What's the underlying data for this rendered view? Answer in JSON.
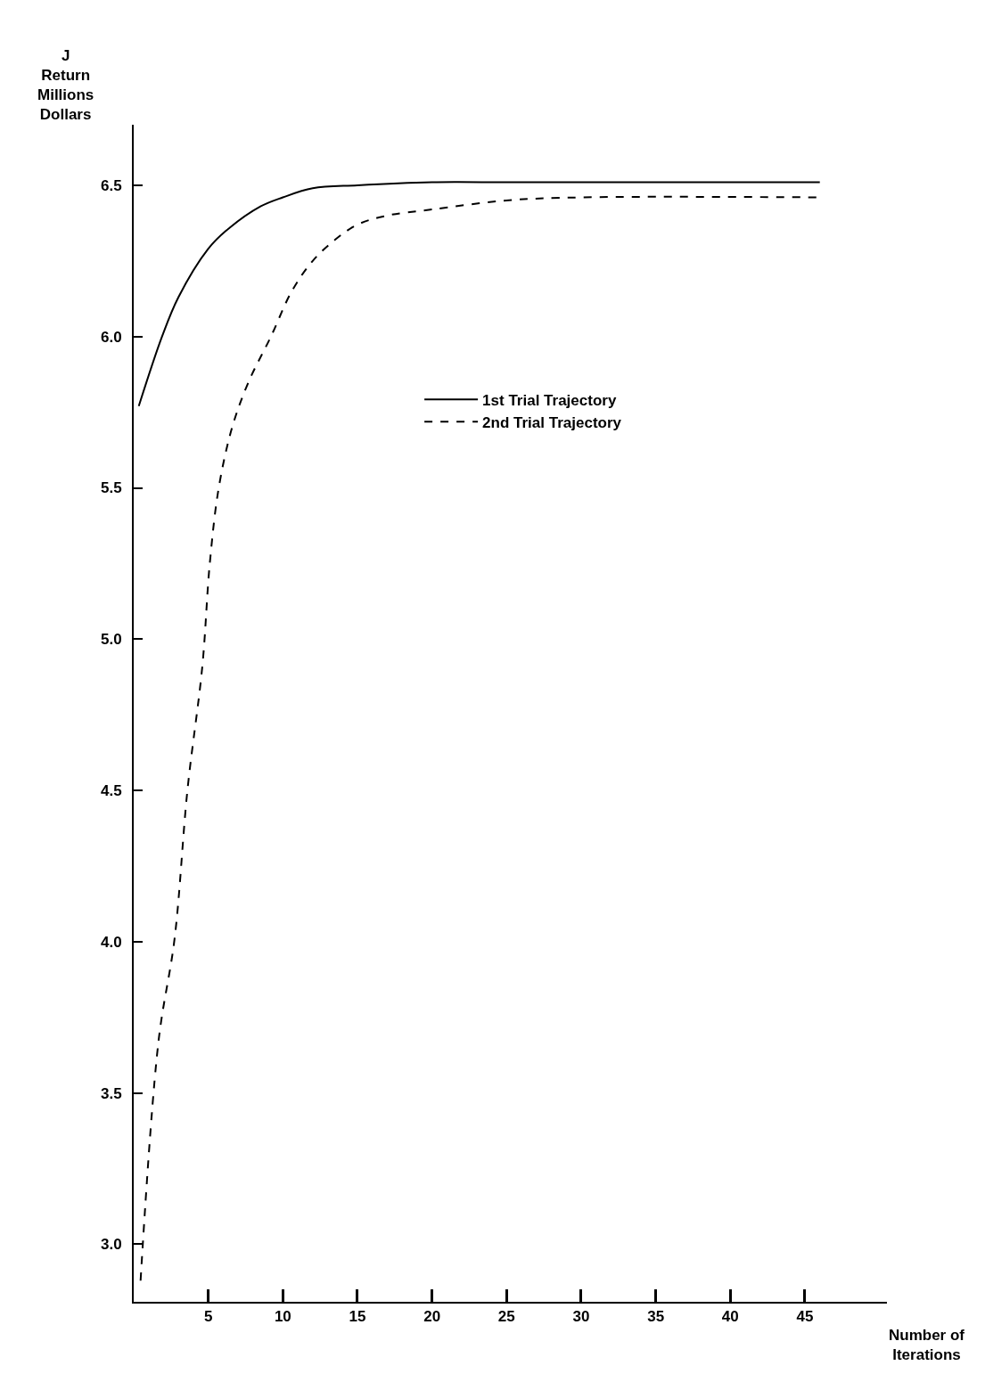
{
  "chart_data": {
    "type": "line",
    "xlabel": "Number of\nIterations",
    "ylabel": "J\nReturn\nMillions\nDollars",
    "xlim": [
      0,
      50.5
    ],
    "ylim": [
      2.81,
      6.7
    ],
    "xticks": [
      5,
      10,
      15,
      20,
      25,
      30,
      35,
      40,
      45
    ],
    "yticks": [
      {
        "value": 3.0,
        "label": "3.0"
      },
      {
        "value": 3.5,
        "label": "3.5"
      },
      {
        "value": 4.0,
        "label": "4.0"
      },
      {
        "value": 4.5,
        "label": "4.5"
      },
      {
        "value": 5.0,
        "label": "5.0"
      },
      {
        "value": 5.5,
        "label": "5.5"
      },
      {
        "value": 6.0,
        "label": "6.0"
      },
      {
        "value": 6.5,
        "label": "6.5"
      }
    ],
    "legend": "top",
    "marker": "none",
    "series": [
      {
        "name": "1st Trial Trajectory",
        "color": "#000000",
        "line_style": "solid",
        "x": [
          0.34,
          1.9,
          3.0,
          5,
          6.2,
          8.5,
          10,
          12,
          15,
          20,
          25,
          30,
          46
        ],
        "values": [
          5.77,
          6.0,
          6.13,
          6.29,
          6.35,
          6.43,
          6.46,
          6.49,
          6.5,
          6.51,
          6.51,
          6.51,
          6.51
        ]
      },
      {
        "name": "2nd Trial Trajectory",
        "color": "#000000",
        "line_style": "dashed",
        "x": [
          0.46,
          1.66,
          2.74,
          3.6,
          4.6,
          5.1,
          5.7,
          6.6,
          7.7,
          9.2,
          10.6,
          12,
          13.5,
          15,
          17,
          20,
          25,
          30,
          46
        ],
        "values": [
          2.88,
          3.67,
          4.01,
          4.5,
          4.91,
          5.25,
          5.5,
          5.7,
          5.85,
          6.0,
          6.15,
          6.25,
          6.32,
          6.37,
          6.4,
          6.42,
          6.45,
          6.46,
          6.46
        ]
      }
    ]
  }
}
